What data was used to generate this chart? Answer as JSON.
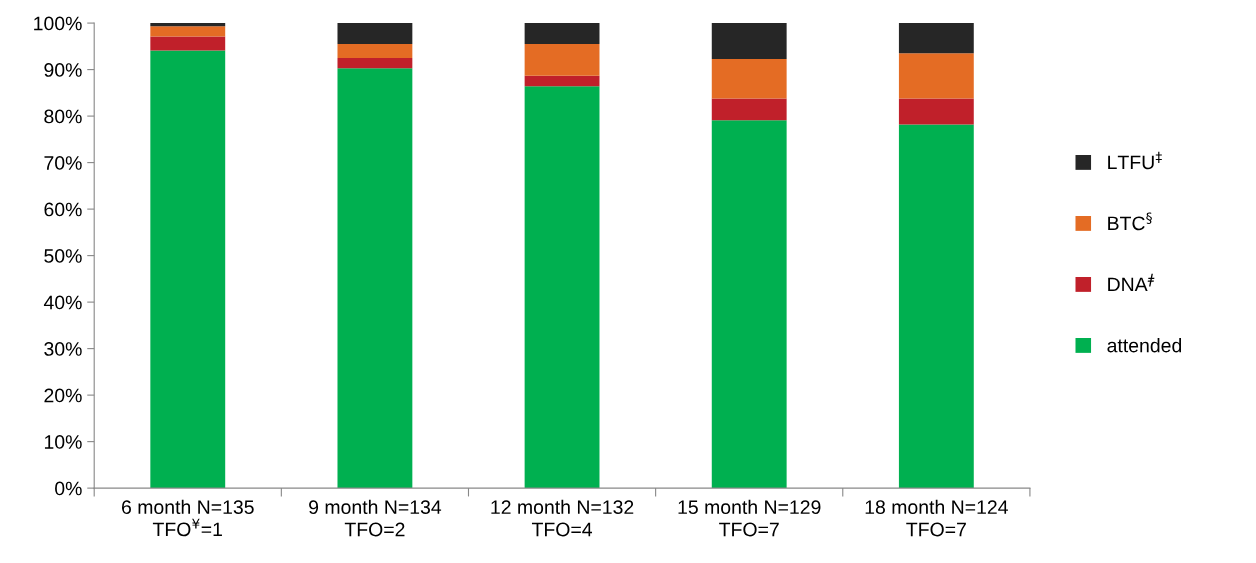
{
  "chart_data": {
    "type": "bar",
    "stacked": true,
    "categories": [
      "6 month N=135\nTFO$^{¥}$=1",
      "9 month N=134\nTFO=2",
      "12 month N=132\nTFO=4",
      "15 month N=129\nTFO=7",
      "18 month N=124\nTFO=7"
    ],
    "series": [
      {
        "name": "attended",
        "color": "#00b050",
        "values": [
          94.1,
          90.3,
          86.4,
          79.1,
          78.2
        ]
      },
      {
        "name": "DNA$^{ǂ}$",
        "color": "#c0202a",
        "values": [
          3.0,
          2.2,
          2.3,
          4.7,
          5.6
        ]
      },
      {
        "name": "BTC$^{§}$",
        "color": "#e46c24",
        "values": [
          2.2,
          3.0,
          6.8,
          8.5,
          9.7
        ]
      },
      {
        "name": "LTFU$^{‡}$",
        "color": "#262626",
        "values": [
          0.7,
          4.5,
          4.5,
          7.7,
          6.5
        ]
      }
    ],
    "ylim": [
      0,
      100
    ],
    "yticks": [
      {
        "value": 0,
        "label": "0%"
      },
      {
        "value": 10,
        "label": "10%"
      },
      {
        "value": 20,
        "label": "20%"
      },
      {
        "value": 30,
        "label": "30%"
      },
      {
        "value": 40,
        "label": "40%"
      },
      {
        "value": 50,
        "label": "50%"
      },
      {
        "value": 60,
        "label": "60%"
      },
      {
        "value": 70,
        "label": "70%"
      },
      {
        "value": 80,
        "label": "80%"
      },
      {
        "value": 90,
        "label": "90%"
      },
      {
        "value": 100,
        "label": "100%"
      }
    ],
    "grid": false,
    "legend": "right"
  }
}
